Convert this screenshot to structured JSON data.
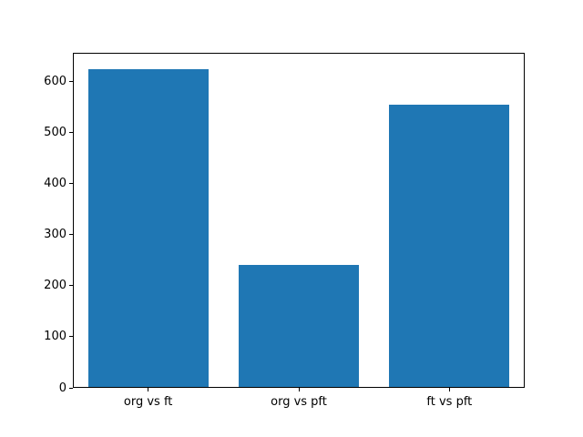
{
  "figure": {
    "background_color": "#ffffff"
  },
  "chart_data": {
    "type": "bar",
    "title": "",
    "xlabel": "",
    "ylabel": "",
    "categories": [
      "org vs ft",
      "org vs pft",
      "ft vs pft"
    ],
    "values": [
      625,
      240,
      555
    ],
    "bar_color": "#1f77b4",
    "yticks": [
      0,
      100,
      200,
      300,
      400,
      500,
      600
    ],
    "ylim": [
      0,
      656
    ],
    "bar_width_fraction": 0.8,
    "grid": "off",
    "legend": "none",
    "spine_color": "#000000",
    "tick_label_color": "#000000"
  }
}
